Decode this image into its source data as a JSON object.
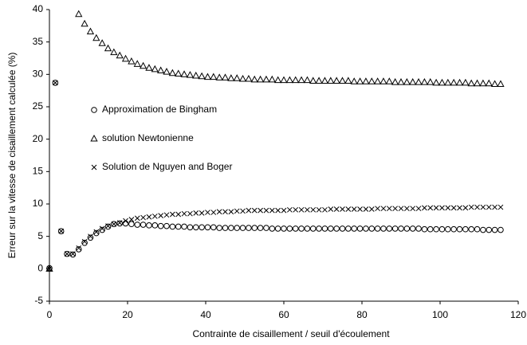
{
  "chart_data": {
    "type": "scatter",
    "xlabel": "Contrainte de cisaillement / seuil d'écoulement",
    "ylabel": "Erreur sur la vitesse de cisaillement calculée (%)",
    "xlim": [
      0,
      120
    ],
    "xticks": [
      0,
      20,
      40,
      60,
      80,
      100,
      120
    ],
    "ylim": [
      -5,
      40
    ],
    "yticks": [
      -5,
      0,
      5,
      10,
      15,
      20,
      25,
      30,
      35,
      40
    ],
    "grid": false,
    "legend": "left",
    "x": [
      0,
      1.5,
      3,
      4.5,
      6,
      7.5,
      9,
      10.5,
      12,
      13.5,
      15,
      16.5,
      18,
      19.5,
      21,
      22.5,
      24,
      25.5,
      27,
      28.5,
      30,
      31.5,
      33,
      34.5,
      36,
      37.5,
      39,
      40.5,
      42,
      43.5,
      45,
      46.5,
      48,
      49.5,
      51,
      52.5,
      54,
      55.5,
      57,
      58.5,
      60,
      61.5,
      63,
      64.5,
      66,
      67.5,
      69,
      70.5,
      72,
      73.5,
      75,
      76.5,
      78,
      79.5,
      81,
      82.5,
      84,
      85.5,
      87,
      88.5,
      90,
      91.5,
      93,
      94.5,
      96,
      97.5,
      99,
      100.5,
      102,
      103.5,
      105,
      106.5,
      108,
      109.5,
      111,
      112.5,
      114,
      115.5
    ],
    "series": [
      {
        "name": "Approximation de Bingham",
        "color": "#000000",
        "marker": "circle",
        "values": [
          0.1,
          28.7,
          5.8,
          2.3,
          2.2,
          3.0,
          4.0,
          4.8,
          5.5,
          6.0,
          6.5,
          6.9,
          7.0,
          7.0,
          6.9,
          6.8,
          6.8,
          6.7,
          6.7,
          6.6,
          6.6,
          6.5,
          6.5,
          6.5,
          6.4,
          6.4,
          6.4,
          6.4,
          6.4,
          6.3,
          6.3,
          6.3,
          6.3,
          6.3,
          6.3,
          6.3,
          6.3,
          6.3,
          6.2,
          6.2,
          6.2,
          6.2,
          6.2,
          6.2,
          6.2,
          6.2,
          6.2,
          6.2,
          6.2,
          6.2,
          6.2,
          6.2,
          6.2,
          6.2,
          6.2,
          6.2,
          6.2,
          6.2,
          6.2,
          6.2,
          6.2,
          6.2,
          6.2,
          6.2,
          6.1,
          6.1,
          6.1,
          6.1,
          6.1,
          6.1,
          6.1,
          6.1,
          6.1,
          6.1,
          6.0,
          6.0,
          6.0,
          6.0
        ]
      },
      {
        "name": "solution Newtonienne",
        "color": "#000000",
        "marker": "triangle",
        "values": [
          0,
          null,
          null,
          null,
          null,
          39.3,
          37.8,
          36.6,
          35.6,
          34.8,
          34.0,
          33.4,
          32.9,
          32.4,
          32.0,
          31.6,
          31.3,
          31.0,
          30.8,
          30.6,
          30.4,
          30.2,
          30.1,
          30.0,
          29.9,
          29.8,
          29.7,
          29.6,
          29.6,
          29.5,
          29.5,
          29.4,
          29.4,
          29.3,
          29.3,
          29.2,
          29.2,
          29.2,
          29.2,
          29.1,
          29.1,
          29.1,
          29.1,
          29.1,
          29.1,
          29.0,
          29.0,
          29.0,
          29.0,
          29.0,
          29.0,
          29.0,
          28.9,
          28.9,
          28.9,
          28.9,
          28.9,
          28.9,
          28.9,
          28.8,
          28.8,
          28.8,
          28.8,
          28.8,
          28.8,
          28.8,
          28.7,
          28.7,
          28.7,
          28.7,
          28.7,
          28.7,
          28.6,
          28.6,
          28.6,
          28.6,
          28.5,
          28.5
        ]
      },
      {
        "name": "Solution de Nguyen and Boger",
        "color": "#000000",
        "marker": "cross",
        "values": [
          0,
          28.7,
          5.8,
          2.3,
          2.3,
          3.2,
          4.2,
          5.0,
          5.7,
          6.2,
          6.6,
          6.9,
          7.1,
          7.4,
          7.6,
          7.8,
          7.9,
          8.0,
          8.1,
          8.2,
          8.3,
          8.4,
          8.4,
          8.5,
          8.5,
          8.6,
          8.6,
          8.7,
          8.7,
          8.8,
          8.8,
          8.8,
          8.9,
          8.9,
          9.0,
          9.0,
          9.0,
          9.0,
          9.0,
          9.0,
          9.0,
          9.1,
          9.1,
          9.1,
          9.1,
          9.1,
          9.1,
          9.1,
          9.2,
          9.2,
          9.2,
          9.2,
          9.2,
          9.2,
          9.2,
          9.2,
          9.3,
          9.3,
          9.3,
          9.3,
          9.3,
          9.3,
          9.3,
          9.3,
          9.4,
          9.4,
          9.4,
          9.4,
          9.4,
          9.4,
          9.4,
          9.4,
          9.5,
          9.5,
          9.5,
          9.5,
          9.5,
          9.5
        ]
      }
    ]
  }
}
